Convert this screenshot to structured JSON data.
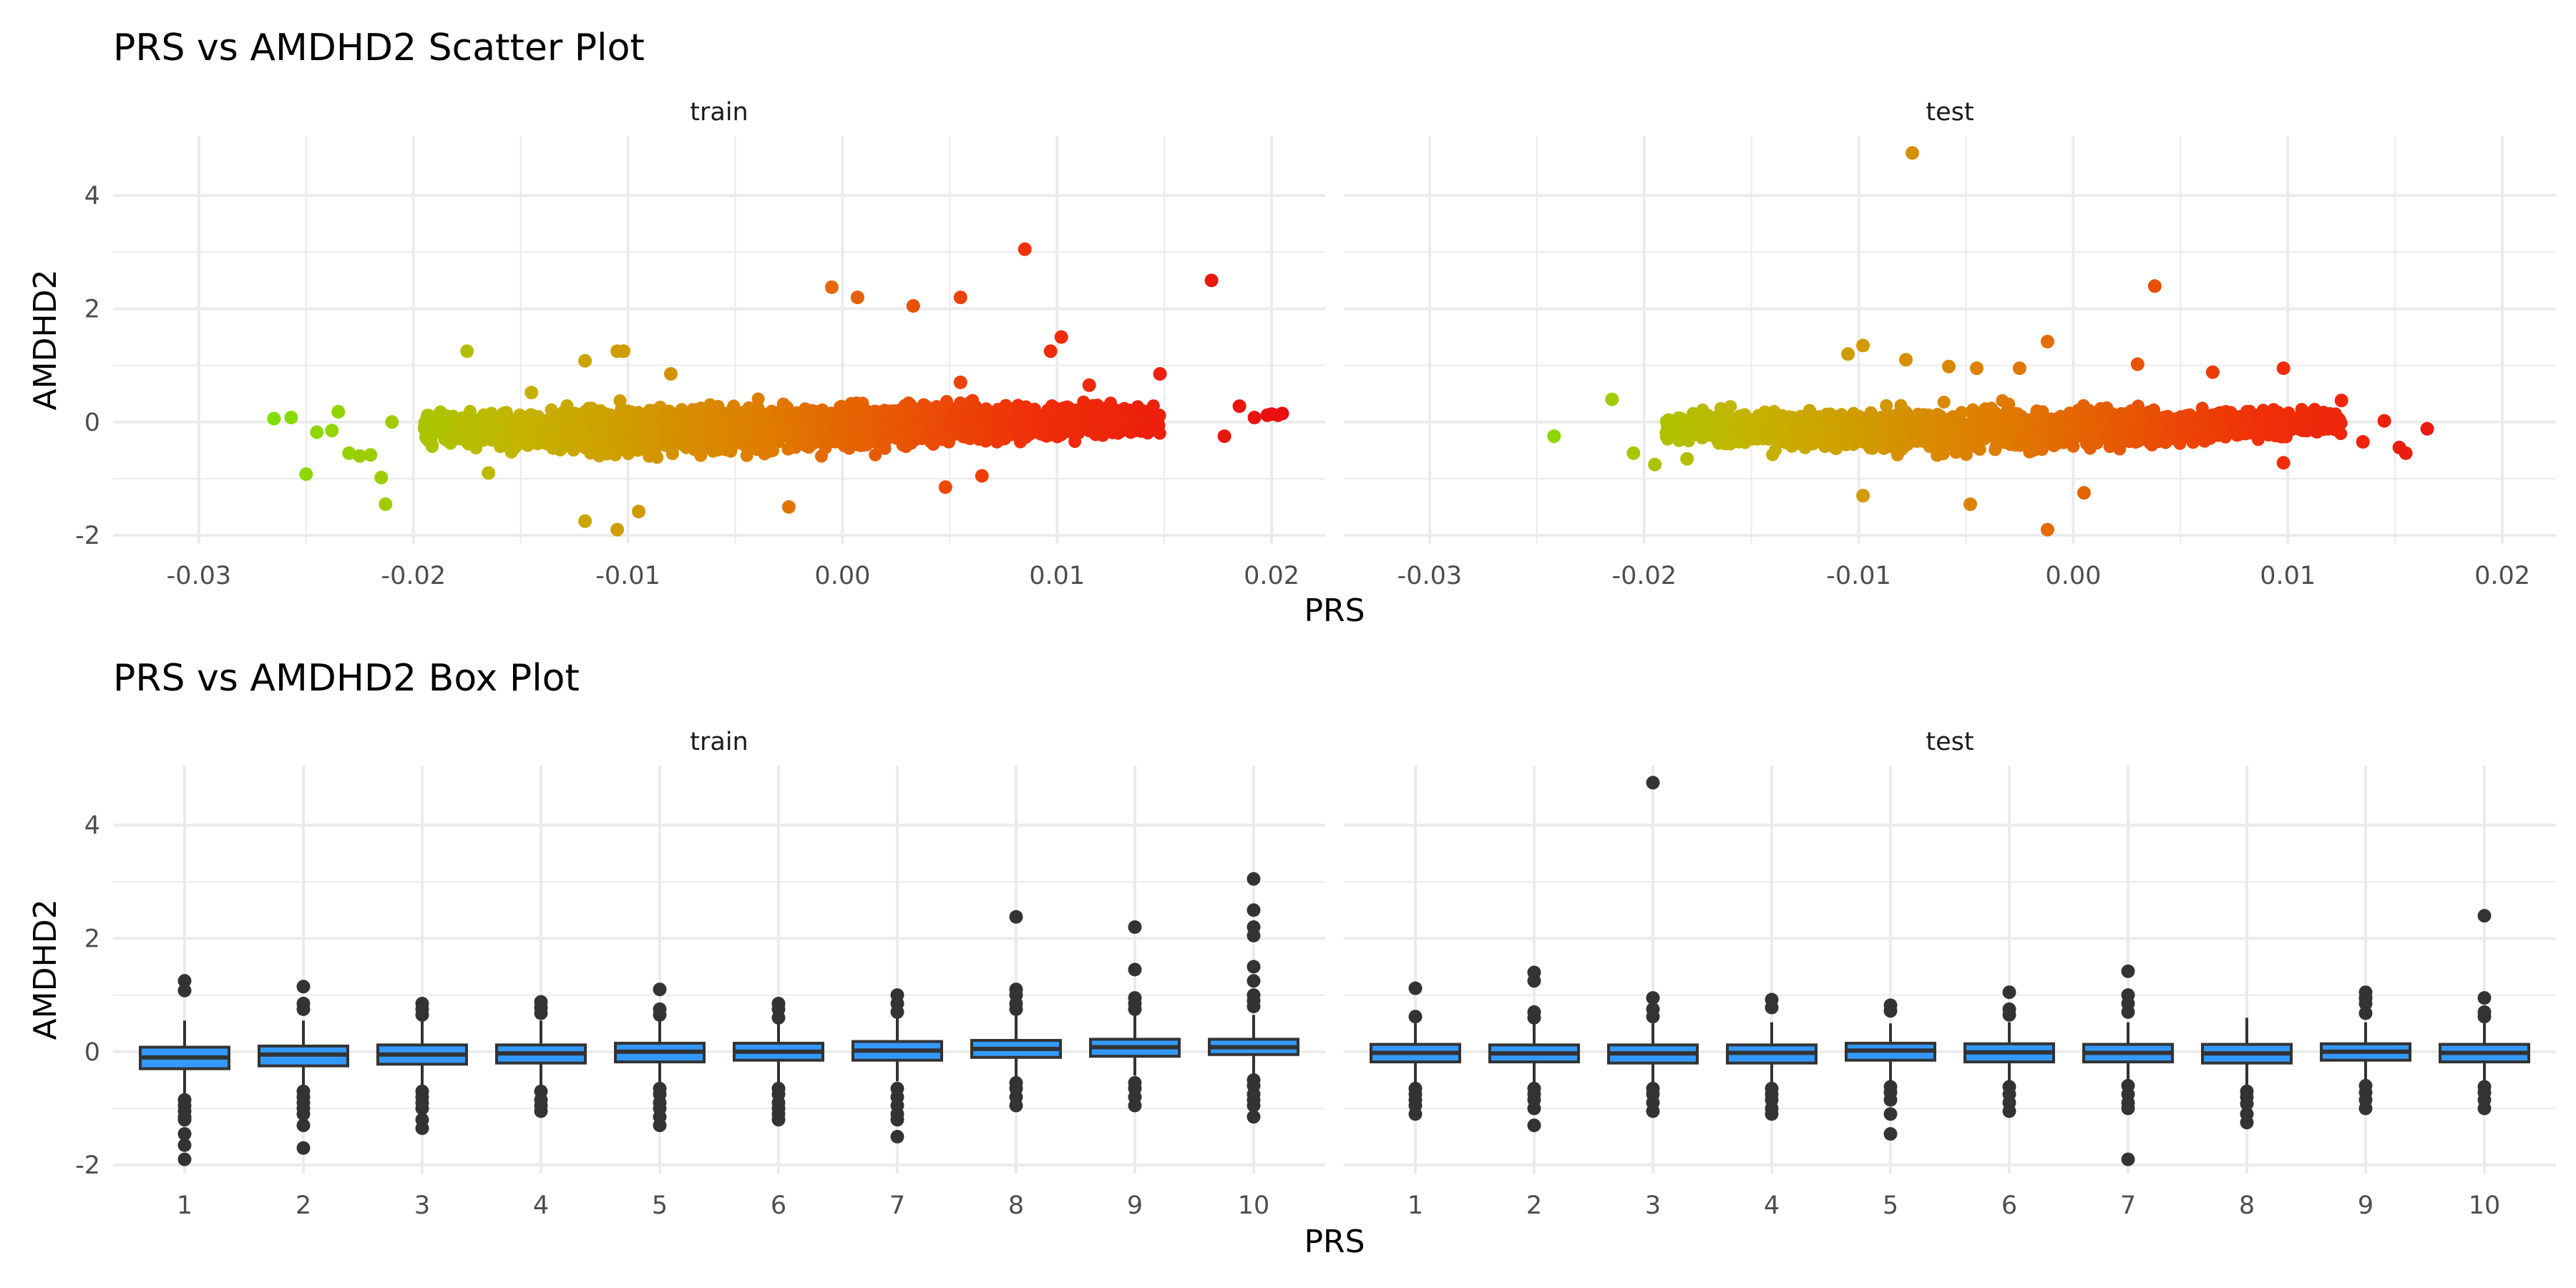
{
  "chart_data": [
    {
      "type": "scatter",
      "title": "PRS vs AMDHD2 Scatter Plot",
      "xlabel": "PRS",
      "ylabel": "AMDHD2",
      "xlim": [
        -0.034,
        0.0225
      ],
      "ylim": [
        -2.15,
        5.05
      ],
      "x_ticks": [
        -0.03,
        -0.02,
        -0.01,
        0.0,
        0.01,
        0.02
      ],
      "x_tick_labels": [
        "-0.03",
        "-0.02",
        "-0.01",
        "0.00",
        "0.01",
        "0.02"
      ],
      "y_ticks": [
        -2,
        0,
        2,
        4
      ],
      "y_tick_labels": [
        "-2",
        "0",
        "2",
        "4"
      ],
      "grid": true,
      "legend": "none",
      "color_gradient": [
        "#7fe000",
        "#c4b400",
        "#e07a00",
        "#f03008",
        "#e81010"
      ],
      "facets": [
        {
          "label": "train",
          "points": [
            [
              -0.0265,
              0.06
            ],
            [
              -0.0257,
              0.08
            ],
            [
              -0.025,
              -0.92
            ],
            [
              -0.0245,
              -0.18
            ],
            [
              -0.0238,
              -0.15
            ],
            [
              -0.0235,
              0.18
            ],
            [
              -0.023,
              -0.55
            ],
            [
              -0.0225,
              -0.6
            ],
            [
              -0.022,
              -0.58
            ],
            [
              -0.0215,
              -0.98
            ],
            [
              -0.0213,
              -1.45
            ],
            [
              -0.021,
              0.0
            ],
            [
              -0.0175,
              1.25
            ],
            [
              -0.0165,
              -0.9
            ],
            [
              -0.012,
              1.08
            ],
            [
              -0.0105,
              1.25
            ],
            [
              -0.0102,
              1.25
            ],
            [
              -0.012,
              -1.75
            ],
            [
              -0.0105,
              -1.9
            ],
            [
              -0.0095,
              -1.58
            ],
            [
              -0.0025,
              -1.5
            ],
            [
              -0.0005,
              2.38
            ],
            [
              0.0007,
              2.2
            ],
            [
              0.0033,
              2.05
            ],
            [
              0.0055,
              2.2
            ],
            [
              0.0085,
              3.05
            ],
            [
              0.0097,
              1.25
            ],
            [
              0.0102,
              1.5
            ],
            [
              0.0048,
              -1.15
            ],
            [
              0.0065,
              -0.95
            ],
            [
              0.0148,
              0.85
            ],
            [
              0.0172,
              2.5
            ],
            [
              0.0185,
              0.28
            ],
            [
              0.0192,
              0.08
            ],
            [
              0.0198,
              0.12
            ],
            [
              0.0203,
              0.12
            ],
            [
              0.0205,
              0.15
            ],
            [
              0.02,
              0.14
            ],
            [
              -0.0145,
              0.52
            ],
            [
              -0.008,
              0.85
            ],
            [
              0.0055,
              0.7
            ],
            [
              0.0115,
              0.65
            ],
            [
              0.0178,
              -0.25
            ]
          ],
          "bulk": [
            {
              "x": -0.0195,
              "y_low": -0.55,
              "y_high": 0.38
            },
            {
              "x": -0.015,
              "y_low": -0.75,
              "y_high": 0.5
            },
            {
              "x": -0.01,
              "y_low": -0.88,
              "y_high": 0.6
            },
            {
              "x": -0.005,
              "y_low": -0.85,
              "y_high": 0.62
            },
            {
              "x": 0.0,
              "y_low": -0.75,
              "y_high": 0.62
            },
            {
              "x": 0.005,
              "y_low": -0.65,
              "y_high": 0.62
            },
            {
              "x": 0.01,
              "y_low": -0.5,
              "y_high": 0.55
            },
            {
              "x": 0.0148,
              "y_low": -0.38,
              "y_high": 0.45
            }
          ]
        },
        {
          "label": "test",
          "points": [
            [
              -0.0242,
              -0.25
            ],
            [
              -0.0215,
              0.4
            ],
            [
              -0.0205,
              -0.55
            ],
            [
              -0.0195,
              -0.75
            ],
            [
              -0.018,
              -0.65
            ],
            [
              -0.0075,
              4.75
            ],
            [
              0.0038,
              2.4
            ],
            [
              -0.0098,
              1.35
            ],
            [
              -0.0105,
              1.2
            ],
            [
              -0.0078,
              1.1
            ],
            [
              -0.0058,
              0.98
            ],
            [
              -0.0045,
              0.95
            ],
            [
              -0.0025,
              0.95
            ],
            [
              -0.0012,
              1.42
            ],
            [
              0.003,
              1.02
            ],
            [
              0.0065,
              0.88
            ],
            [
              0.0098,
              0.95
            ],
            [
              -0.0012,
              -1.9
            ],
            [
              -0.0048,
              -1.45
            ],
            [
              -0.0098,
              -1.3
            ],
            [
              0.0005,
              -1.25
            ],
            [
              0.0125,
              0.38
            ],
            [
              0.0135,
              -0.35
            ],
            [
              0.0145,
              0.02
            ],
            [
              0.0152,
              -0.45
            ],
            [
              0.0155,
              -0.55
            ],
            [
              0.0165,
              -0.12
            ],
            [
              0.0098,
              -0.72
            ]
          ],
          "bulk": [
            {
              "x": -0.019,
              "y_low": -0.5,
              "y_high": 0.35
            },
            {
              "x": -0.015,
              "y_low": -0.68,
              "y_high": 0.45
            },
            {
              "x": -0.01,
              "y_low": -0.8,
              "y_high": 0.52
            },
            {
              "x": -0.005,
              "y_low": -0.8,
              "y_high": 0.52
            },
            {
              "x": 0.0,
              "y_low": -0.72,
              "y_high": 0.52
            },
            {
              "x": 0.005,
              "y_low": -0.62,
              "y_high": 0.48
            },
            {
              "x": 0.01,
              "y_low": -0.45,
              "y_high": 0.42
            },
            {
              "x": 0.0125,
              "y_low": -0.35,
              "y_high": 0.32
            }
          ]
        }
      ]
    },
    {
      "type": "box",
      "title": "PRS vs AMDHD2 Box Plot",
      "xlabel": "PRS",
      "ylabel": "AMDHD2",
      "categories": [
        "1",
        "2",
        "3",
        "4",
        "5",
        "6",
        "7",
        "8",
        "9",
        "10"
      ],
      "ylim": [
        -2.15,
        5.05
      ],
      "y_ticks": [
        -2,
        0,
        2,
        4
      ],
      "y_tick_labels": [
        "-2",
        "0",
        "2",
        "4"
      ],
      "grid": true,
      "box_fill": "#3399ff",
      "box_stroke": "#333333",
      "facets": [
        {
          "label": "train",
          "boxes": [
            {
              "category": "1",
              "whisker_low": -0.8,
              "q1": -0.3,
              "median": -0.1,
              "q3": 0.08,
              "whisker_high": 0.55,
              "outliers": [
                1.25,
                1.08,
                -0.85,
                -0.95,
                -1.05,
                -1.15,
                -1.2,
                -1.45,
                -1.65,
                -1.9
              ]
            },
            {
              "category": "2",
              "whisker_low": -0.68,
              "q1": -0.25,
              "median": -0.05,
              "q3": 0.1,
              "whisker_high": 0.55,
              "outliers": [
                1.15,
                0.85,
                0.75,
                -0.7,
                -0.8,
                -0.9,
                -1.0,
                -1.1,
                -1.3,
                -1.7
              ]
            },
            {
              "category": "3",
              "whisker_low": -0.65,
              "q1": -0.22,
              "median": -0.05,
              "q3": 0.12,
              "whisker_high": 0.55,
              "outliers": [
                0.85,
                0.75,
                0.65,
                -0.7,
                -0.8,
                -0.9,
                -1.0,
                -1.2,
                -1.35
              ]
            },
            {
              "category": "4",
              "whisker_low": -0.62,
              "q1": -0.2,
              "median": -0.03,
              "q3": 0.12,
              "whisker_high": 0.55,
              "outliers": [
                0.88,
                0.78,
                0.68,
                -0.7,
                -0.85,
                -0.95,
                -1.05
              ]
            },
            {
              "category": "5",
              "whisker_low": -0.6,
              "q1": -0.18,
              "median": 0.0,
              "q3": 0.15,
              "whisker_high": 0.55,
              "outliers": [
                1.1,
                0.75,
                0.65,
                -0.65,
                -0.75,
                -0.9,
                -1.0,
                -1.15,
                -1.3
              ]
            },
            {
              "category": "6",
              "whisker_low": -0.55,
              "q1": -0.15,
              "median": 0.0,
              "q3": 0.15,
              "whisker_high": 0.55,
              "outliers": [
                0.85,
                0.75,
                0.6,
                -0.65,
                -0.75,
                -0.9,
                -1.0,
                -1.1,
                -1.2
              ]
            },
            {
              "category": "7",
              "whisker_low": -0.52,
              "q1": -0.15,
              "median": 0.02,
              "q3": 0.18,
              "whisker_high": 0.6,
              "outliers": [
                1.0,
                0.85,
                0.7,
                -0.65,
                -0.8,
                -0.95,
                -1.1,
                -1.2,
                -1.5
              ]
            },
            {
              "category": "8",
              "whisker_low": -0.45,
              "q1": -0.1,
              "median": 0.05,
              "q3": 0.2,
              "whisker_high": 0.65,
              "outliers": [
                2.38,
                1.1,
                1.0,
                0.85,
                0.75,
                -0.55,
                -0.65,
                -0.8,
                -0.95
              ]
            },
            {
              "category": "9",
              "whisker_low": -0.42,
              "q1": -0.08,
              "median": 0.08,
              "q3": 0.22,
              "whisker_high": 0.68,
              "outliers": [
                2.2,
                1.45,
                0.95,
                0.85,
                0.75,
                -0.55,
                -0.65,
                -0.8,
                -0.95
              ]
            },
            {
              "category": "10",
              "whisker_low": -0.4,
              "q1": -0.05,
              "median": 0.08,
              "q3": 0.22,
              "whisker_high": 0.65,
              "outliers": [
                3.05,
                2.5,
                2.2,
                2.05,
                1.5,
                1.25,
                1.0,
                0.9,
                0.8,
                -0.5,
                -0.6,
                -0.75,
                -0.85,
                -0.95,
                -1.15
              ]
            }
          ]
        },
        {
          "label": "test",
          "boxes": [
            {
              "category": "1",
              "whisker_low": -0.6,
              "q1": -0.18,
              "median": -0.02,
              "q3": 0.13,
              "whisker_high": 0.5,
              "outliers": [
                1.12,
                0.62,
                -0.65,
                -0.75,
                -0.85,
                -0.95,
                -1.1
              ]
            },
            {
              "category": "2",
              "whisker_low": -0.62,
              "q1": -0.18,
              "median": -0.03,
              "q3": 0.12,
              "whisker_high": 0.5,
              "outliers": [
                1.4,
                1.25,
                0.7,
                0.6,
                -0.65,
                -0.75,
                -0.85,
                -1.0,
                -1.3
              ]
            },
            {
              "category": "3",
              "whisker_low": -0.6,
              "q1": -0.2,
              "median": -0.03,
              "q3": 0.12,
              "whisker_high": 0.5,
              "outliers": [
                4.75,
                0.95,
                0.75,
                0.62,
                -0.65,
                -0.75,
                -0.9,
                -1.05
              ]
            },
            {
              "category": "4",
              "whisker_low": -0.6,
              "q1": -0.2,
              "median": -0.02,
              "q3": 0.12,
              "whisker_high": 0.52,
              "outliers": [
                0.92,
                0.78,
                -0.65,
                -0.75,
                -0.85,
                -1.0,
                -1.1
              ]
            },
            {
              "category": "5",
              "whisker_low": -0.55,
              "q1": -0.15,
              "median": 0.02,
              "q3": 0.15,
              "whisker_high": 0.5,
              "outliers": [
                0.82,
                0.72,
                -0.62,
                -0.72,
                -0.85,
                -1.1,
                -1.45
              ]
            },
            {
              "category": "6",
              "whisker_low": -0.58,
              "q1": -0.18,
              "median": -0.01,
              "q3": 0.14,
              "whisker_high": 0.52,
              "outliers": [
                1.05,
                0.75,
                0.65,
                -0.62,
                -0.75,
                -0.9,
                -1.05
              ]
            },
            {
              "category": "7",
              "whisker_low": -0.58,
              "q1": -0.18,
              "median": -0.02,
              "q3": 0.13,
              "whisker_high": 0.52,
              "outliers": [
                1.42,
                1.0,
                0.85,
                0.7,
                -0.6,
                -0.75,
                -0.9,
                -1.0,
                -1.9
              ]
            },
            {
              "category": "8",
              "whisker_low": -0.6,
              "q1": -0.2,
              "median": -0.03,
              "q3": 0.13,
              "whisker_high": 0.6,
              "outliers": [
                -0.7,
                -0.8,
                -0.92,
                -1.1,
                -1.25
              ]
            },
            {
              "category": "9",
              "whisker_low": -0.55,
              "q1": -0.15,
              "median": 0.0,
              "q3": 0.14,
              "whisker_high": 0.52,
              "outliers": [
                1.05,
                0.95,
                0.85,
                0.68,
                -0.6,
                -0.72,
                -0.85,
                -1.0
              ]
            },
            {
              "category": "10",
              "whisker_low": -0.58,
              "q1": -0.18,
              "median": -0.02,
              "q3": 0.13,
              "whisker_high": 0.5,
              "outliers": [
                2.4,
                0.95,
                0.7,
                0.62,
                -0.62,
                -0.72,
                -0.85,
                -1.0
              ]
            }
          ]
        }
      ]
    }
  ]
}
